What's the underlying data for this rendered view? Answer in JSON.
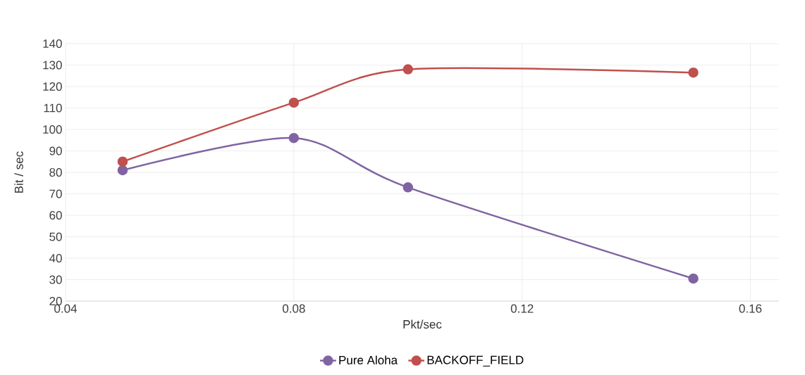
{
  "chart_data": {
    "type": "line",
    "xlabel": "Pkt/sec",
    "ylabel": "Bit / sec",
    "xlim": [
      0.04,
      0.165
    ],
    "xticks": [
      0.04,
      0.08,
      0.12,
      0.16
    ],
    "ylim": [
      20,
      140
    ],
    "yticks": [
      20,
      30,
      40,
      50,
      60,
      70,
      80,
      90,
      100,
      110,
      120,
      130,
      140
    ],
    "grid": true,
    "legend": "bottom",
    "marker": "circle",
    "line_style": "solid",
    "series": [
      {
        "name": "Pure Aloha",
        "color": "#8064a2",
        "x": [
          0.05,
          0.08,
          0.1,
          0.15
        ],
        "values": [
          81,
          96,
          73,
          30.5
        ]
      },
      {
        "name": "BACKOFF_FIELD",
        "color": "#c0504d",
        "x": [
          0.05,
          0.08,
          0.1,
          0.15
        ],
        "values": [
          85,
          112.5,
          128,
          126.5
        ]
      }
    ]
  }
}
